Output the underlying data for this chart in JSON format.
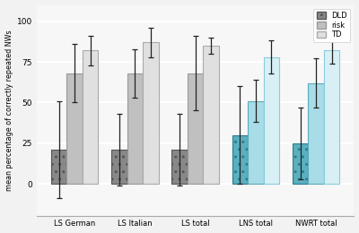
{
  "categories": [
    "LS German",
    "LS Italian",
    "LS total",
    "LNS total",
    "NWRT total"
  ],
  "groups": [
    "DLD",
    "risk",
    "TD"
  ],
  "values": [
    [
      21,
      68,
      82
    ],
    [
      21,
      68,
      87
    ],
    [
      21,
      68,
      85
    ],
    [
      30,
      51,
      78
    ],
    [
      25,
      62,
      82
    ]
  ],
  "errors": [
    [
      30,
      18,
      9
    ],
    [
      22,
      15,
      9
    ],
    [
      22,
      23,
      5
    ],
    [
      30,
      13,
      10
    ],
    [
      22,
      15,
      8
    ]
  ],
  "bar_colors_ls": [
    "#888888",
    "#c0c0c0",
    "#e0e0e0"
  ],
  "bar_colors_lns": [
    "#5ab0be",
    "#a8dce6",
    "#d8f0f5"
  ],
  "hatch_dld": "..",
  "edge_colors_ls": [
    "#555555",
    "#999999",
    "#aaaaaa"
  ],
  "edge_colors_lns": [
    "#2a7a90",
    "#5aaabb",
    "#88ccdd"
  ],
  "ylim": [
    -20,
    110
  ],
  "yticks": [
    0,
    25,
    50,
    75,
    100
  ],
  "ylabel": "mean percentage of correctly repeated NWs",
  "legend_labels": [
    "DLD",
    "risk",
    "TD"
  ],
  "background_color": "#f2f2f2",
  "plot_bg_color": "#f7f7f7",
  "grid_color": "#ffffff"
}
